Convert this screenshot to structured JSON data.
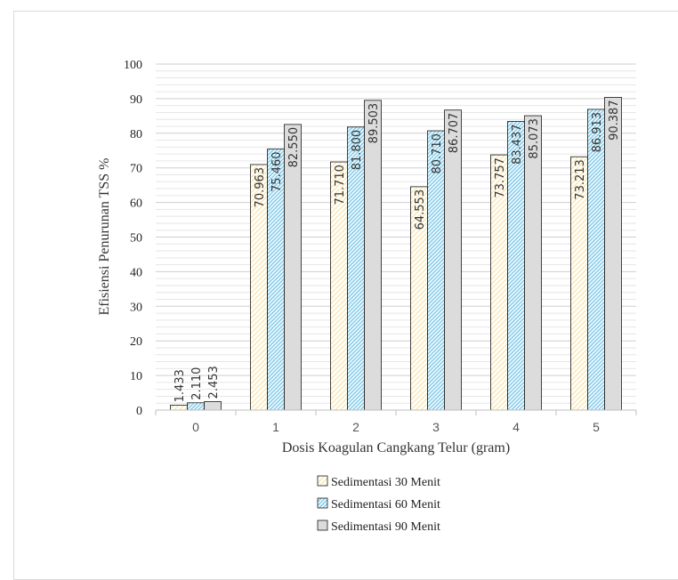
{
  "chart_data": {
    "type": "bar",
    "categories": [
      "0",
      "1",
      "2",
      "3",
      "4",
      "5"
    ],
    "series": [
      {
        "name": "Sedimentasi 30 Menit",
        "values": [
          1.433,
          70.963,
          71.71,
          64.553,
          73.757,
          73.213
        ],
        "labels": [
          "1.433",
          "70.963",
          "71.710",
          "64.553",
          "73.757",
          "73.213"
        ],
        "color": "#f5d896",
        "pattern": "diagonal-light"
      },
      {
        "name": "Sedimentasi 60 Menit",
        "values": [
          2.11,
          75.46,
          81.8,
          80.71,
          83.437,
          86.913
        ],
        "labels": [
          "2.110",
          "75.460",
          "81.800",
          "80.710",
          "83.437",
          "86.913"
        ],
        "color": "#33a8d8",
        "pattern": "diagonal-dense"
      },
      {
        "name": "Sedimentasi 90 Menit",
        "values": [
          2.453,
          82.55,
          89.503,
          86.707,
          85.073,
          90.387
        ],
        "labels": [
          "2.453",
          "82.550",
          "89.503",
          "86.707",
          "85.073",
          "90.387"
        ],
        "color": "#d9d9d9",
        "pattern": "solid"
      }
    ],
    "xlabel": "Dosis Koagulan Cangkang Telur (gram)",
    "ylabel": "Efisiensi Penurunan TSS %",
    "ylim": [
      0,
      100
    ],
    "yticks": [
      0,
      10,
      20,
      30,
      40,
      50,
      60,
      70,
      80,
      90,
      100
    ],
    "grid": "horizontal",
    "legend": "bottom"
  }
}
